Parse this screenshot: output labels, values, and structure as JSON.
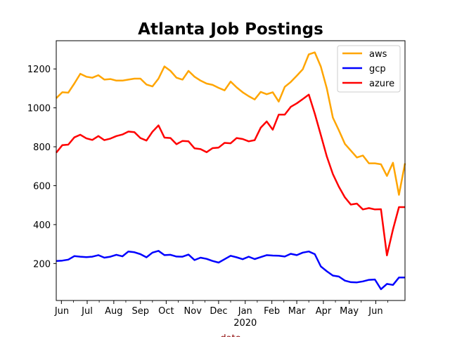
{
  "chart_data": {
    "type": "line",
    "title": "Atlanta Job Postings",
    "xlabel": "date",
    "xlabel_color": "#8b0000",
    "ylabel": "",
    "ylim": [
      10,
      1345
    ],
    "xlim": [
      "2019-05-26",
      "2020-07-05"
    ],
    "yticks": [
      200,
      400,
      600,
      800,
      1000,
      1200
    ],
    "xticks": [
      {
        "date": "2019-06-01",
        "label": "Jun"
      },
      {
        "date": "2019-07-01",
        "label": "Jul"
      },
      {
        "date": "2019-08-01",
        "label": "Aug"
      },
      {
        "date": "2019-09-01",
        "label": "Sep"
      },
      {
        "date": "2019-10-01",
        "label": "Oct"
      },
      {
        "date": "2019-11-01",
        "label": "Nov"
      },
      {
        "date": "2019-12-01",
        "label": "Dec"
      },
      {
        "date": "2020-01-01",
        "label": "Jan"
      },
      {
        "date": "2020-02-01",
        "label": "Feb"
      },
      {
        "date": "2020-03-01",
        "label": "Mar"
      },
      {
        "date": "2020-04-01",
        "label": "Apr"
      },
      {
        "date": "2020-05-01",
        "label": "May"
      },
      {
        "date": "2020-06-01",
        "label": "Jun"
      }
    ],
    "year_label": {
      "date": "2020-01-01",
      "label": "2020"
    },
    "grid": false,
    "legend": "top-right",
    "x": [
      "2019-05-26",
      "2019-06-02",
      "2019-06-09",
      "2019-06-16",
      "2019-06-23",
      "2019-06-30",
      "2019-07-07",
      "2019-07-14",
      "2019-07-21",
      "2019-07-28",
      "2019-08-04",
      "2019-08-11",
      "2019-08-18",
      "2019-08-25",
      "2019-09-01",
      "2019-09-08",
      "2019-09-15",
      "2019-09-22",
      "2019-09-29",
      "2019-10-06",
      "2019-10-13",
      "2019-10-20",
      "2019-10-27",
      "2019-11-03",
      "2019-11-10",
      "2019-11-17",
      "2019-11-24",
      "2019-12-01",
      "2019-12-08",
      "2019-12-15",
      "2019-12-22",
      "2019-12-29",
      "2020-01-05",
      "2020-01-12",
      "2020-01-19",
      "2020-01-26",
      "2020-02-02",
      "2020-02-09",
      "2020-02-16",
      "2020-02-23",
      "2020-03-01",
      "2020-03-08",
      "2020-03-15",
      "2020-03-22",
      "2020-03-29",
      "2020-04-05",
      "2020-04-12",
      "2020-04-19",
      "2020-04-26",
      "2020-05-03",
      "2020-05-10",
      "2020-05-17",
      "2020-05-24",
      "2020-05-31",
      "2020-06-07",
      "2020-06-14",
      "2020-06-21",
      "2020-06-28",
      "2020-07-05"
    ],
    "series": [
      {
        "name": "aws",
        "color": "#ffa500",
        "values": [
          1050,
          1080,
          1078,
          1125,
          1175,
          1160,
          1155,
          1168,
          1145,
          1148,
          1140,
          1140,
          1145,
          1150,
          1150,
          1120,
          1110,
          1150,
          1213,
          1190,
          1155,
          1145,
          1190,
          1160,
          1140,
          1125,
          1118,
          1103,
          1090,
          1135,
          1105,
          1080,
          1060,
          1043,
          1082,
          1070,
          1080,
          1032,
          1108,
          1133,
          1165,
          1198,
          1275,
          1285,
          1212,
          1100,
          950,
          885,
          815,
          780,
          745,
          755,
          715,
          715,
          710,
          650,
          718,
          553,
          715
        ]
      },
      {
        "name": "gcp",
        "color": "#0000ff",
        "values": [
          213,
          215,
          220,
          238,
          235,
          233,
          235,
          243,
          230,
          235,
          245,
          237,
          262,
          258,
          248,
          232,
          256,
          265,
          243,
          245,
          236,
          235,
          246,
          218,
          230,
          224,
          213,
          205,
          222,
          240,
          232,
          222,
          235,
          223,
          233,
          243,
          241,
          240,
          236,
          250,
          243,
          256,
          262,
          248,
          185,
          160,
          138,
          133,
          112,
          104,
          103,
          108,
          116,
          118,
          68,
          95,
          90,
          128,
          128
        ]
      },
      {
        "name": "azure",
        "color": "#ff0000",
        "values": [
          770,
          808,
          811,
          848,
          862,
          843,
          835,
          855,
          834,
          842,
          855,
          863,
          878,
          875,
          845,
          832,
          877,
          910,
          847,
          845,
          813,
          830,
          828,
          792,
          788,
          772,
          793,
          796,
          820,
          818,
          845,
          840,
          828,
          834,
          898,
          930,
          888,
          965,
          965,
          1005,
          1023,
          1045,
          1068,
          970,
          860,
          750,
          660,
          595,
          540,
          503,
          508,
          478,
          485,
          478,
          479,
          242,
          375,
          490,
          490
        ]
      }
    ]
  }
}
